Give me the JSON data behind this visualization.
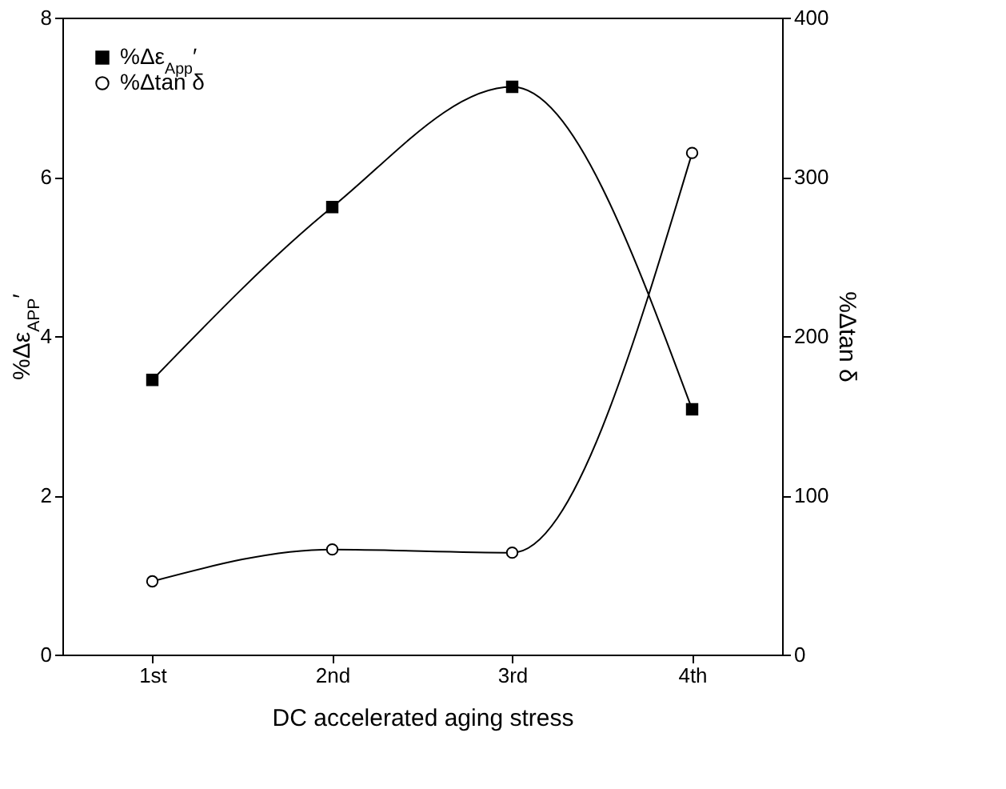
{
  "chart_data": {
    "type": "line",
    "xlabel": "DC accelerated aging stress",
    "ylabel": "%Δε$_{APP}$′",
    "y2label": "%Δtan δ",
    "categories": [
      "1st",
      "2nd",
      "3rd",
      "4th"
    ],
    "series": [
      {
        "name": "%Δε$_{App}$′",
        "color": "#000000",
        "marker": "square",
        "values": [
          3.45,
          5.62,
          7.13,
          3.08
        ]
      },
      {
        "name": "%Δtan δ",
        "color": "#000000",
        "marker": "circle",
        "axis": "y2",
        "values": [
          46,
          66,
          64,
          315
        ]
      }
    ],
    "ylim": [
      0,
      8
    ],
    "yticks": [
      0,
      2,
      4,
      6,
      8
    ],
    "y2lim": [
      0,
      400
    ],
    "y2ticks": [
      0,
      100,
      200,
      300,
      400
    ],
    "legend": "top left",
    "grid": false
  }
}
